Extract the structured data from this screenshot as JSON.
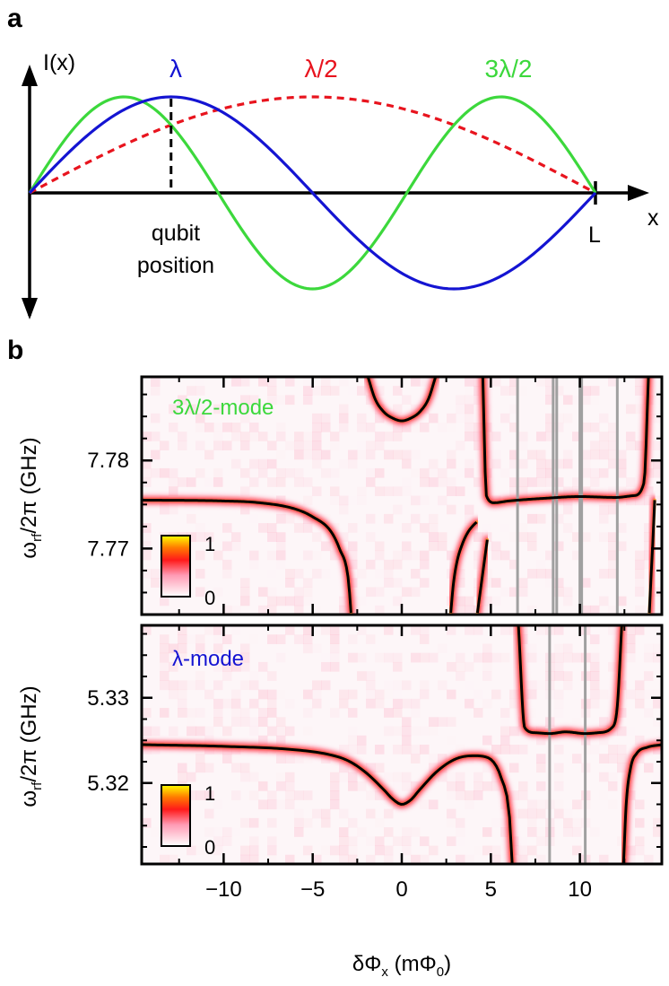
{
  "panel_labels": {
    "a": "a",
    "b": "b"
  },
  "colors": {
    "lambda": "#1414d2",
    "half_lambda": "#e8141e",
    "three_half_lambda": "#3cd83c",
    "fit": "#000000",
    "qubit_line": "#a0a0a0",
    "axis": "#000000"
  },
  "chart_data": [
    {
      "panel": "a",
      "type": "line",
      "title": "",
      "ylabel": "I(x)",
      "xlabel": "x",
      "end_label": "L",
      "annotation": "qubit position",
      "annotation_lines": [
        "qubit",
        "position"
      ],
      "qubit_position_fraction_of_L": 0.25,
      "x_range": [
        0,
        1
      ],
      "y_range": [
        -1,
        1
      ],
      "series": [
        {
          "name": "λ",
          "function": "sin(2πx/L)",
          "style": "solid",
          "color_key": "lambda"
        },
        {
          "name": "λ/2",
          "function": "sin(πx/L)",
          "style": "dashed",
          "color_key": "half_lambda"
        },
        {
          "name": "3λ/2",
          "function": "sin(3πx/L)",
          "style": "solid",
          "color_key": "three_half_lambda"
        }
      ]
    },
    {
      "panel": "b-top",
      "type": "heatmap",
      "mode_label": "3λ/2-mode",
      "ylabel": "ω_rf/2π (GHz)",
      "ylabel_main": "ω",
      "ylabel_sub": "rf",
      "ylabel_rest": "/2π (GHz)",
      "xlim": [
        -14.6,
        14.6
      ],
      "ylim": [
        7.7625,
        7.7895
      ],
      "y_ticks": [
        7.77,
        7.78
      ],
      "y_tick_labels": [
        "7.77",
        "7.78"
      ],
      "x_ticks": [
        -10,
        -5,
        0,
        5,
        10
      ],
      "colorbar": {
        "min_label": "0",
        "max_label": "1"
      },
      "resonance_center_GHz": 7.7755,
      "avoided_crossings_mPhi0": [
        -2.8,
        0.1,
        4.5,
        14.0
      ],
      "qubit_lines_mPhi0": [
        6.5,
        8.5,
        8.7,
        10.0,
        10.1,
        12.1
      ],
      "fit_branches": [
        {
          "x": [
            -14.6,
            -10,
            -8,
            -6,
            -5,
            -4,
            -3.5,
            -3.0,
            -2.85
          ],
          "y": [
            7.7755,
            7.7754,
            7.7752,
            7.7745,
            7.7736,
            7.772,
            7.77,
            7.7665,
            7.7627
          ]
        },
        {
          "x": [
            -1.9,
            -1.5,
            -1.0,
            -0.5,
            0.0,
            0.5,
            1.0,
            1.5,
            1.9
          ],
          "y": [
            7.7895,
            7.787,
            7.7855,
            7.7848,
            7.7845,
            7.7848,
            7.7855,
            7.787,
            7.7895
          ]
        },
        {
          "x": [
            2.75,
            2.9,
            3.1,
            3.4,
            3.7,
            4.0,
            4.2
          ],
          "y": [
            7.7627,
            7.766,
            7.7685,
            7.7705,
            7.7718,
            7.7726,
            7.773
          ]
        },
        {
          "x": [
            4.25,
            4.4,
            4.6,
            4.8
          ],
          "y": [
            7.7627,
            7.765,
            7.768,
            7.771
          ]
        },
        {
          "x": [
            4.55,
            4.75,
            5.2,
            6.0,
            8.0,
            10.0,
            12.0,
            13.0,
            13.6,
            13.85
          ],
          "y": [
            7.7895,
            7.776,
            7.7752,
            7.7754,
            7.7757,
            7.7759,
            7.7758,
            7.776,
            7.7775,
            7.7895
          ]
        },
        {
          "x": [
            13.9,
            14.0,
            14.1,
            14.2
          ],
          "y": [
            7.7627,
            7.767,
            7.771,
            7.7755
          ]
        }
      ]
    },
    {
      "panel": "b-bottom",
      "type": "heatmap",
      "mode_label": "λ-mode",
      "ylabel": "ω_rf/2π (GHz)",
      "ylabel_main": "ω",
      "ylabel_sub": "rf",
      "ylabel_rest": "/2π (GHz)",
      "xlabel": "δΦx (mΦ0)",
      "xlabel_main": "δΦ",
      "xlabel_sub": "x",
      "xlabel_mid": " (mΦ",
      "xlabel_sub2": "0",
      "xlabel_end": ")",
      "xlim": [
        -14.6,
        14.6
      ],
      "ylim": [
        5.3105,
        5.3385
      ],
      "y_ticks": [
        5.32,
        5.33
      ],
      "y_tick_labels": [
        "5.32",
        "5.33"
      ],
      "x_ticks": [
        -10,
        -5,
        0,
        5,
        10
      ],
      "x_tick_labels": [
        "−10",
        "−5",
        "0",
        "5",
        "10"
      ],
      "colorbar": {
        "min_label": "0",
        "max_label": "1"
      },
      "resonance_center_GHz": 5.3245,
      "qubit_lines_mPhi0": [
        8.3,
        10.3
      ],
      "fit_branches": [
        {
          "x": [
            -14.6,
            -10,
            -6,
            -4,
            -3,
            -2,
            -1,
            -0.5,
            0,
            0.5,
            1,
            2,
            3,
            4,
            4.8,
            5.6,
            6.05,
            6.2
          ],
          "y": [
            5.3245,
            5.3243,
            5.3239,
            5.3233,
            5.3226,
            5.3212,
            5.3192,
            5.3181,
            5.3175,
            5.318,
            5.3192,
            5.3214,
            5.3228,
            5.3232,
            5.323,
            5.3205,
            5.316,
            5.3105
          ]
        },
        {
          "x": [
            6.55,
            6.9,
            7.5,
            8.3,
            9.2,
            10.3,
            11.0,
            11.8,
            12.1,
            12.35
          ],
          "y": [
            5.3385,
            5.3265,
            5.3259,
            5.3258,
            5.326,
            5.3258,
            5.3259,
            5.3265,
            5.329,
            5.3385
          ]
        },
        {
          "x": [
            12.45,
            12.6,
            12.85,
            13.2,
            13.8,
            14.6
          ],
          "y": [
            5.3105,
            5.3175,
            5.3218,
            5.3235,
            5.3242,
            5.3245
          ]
        }
      ]
    }
  ]
}
